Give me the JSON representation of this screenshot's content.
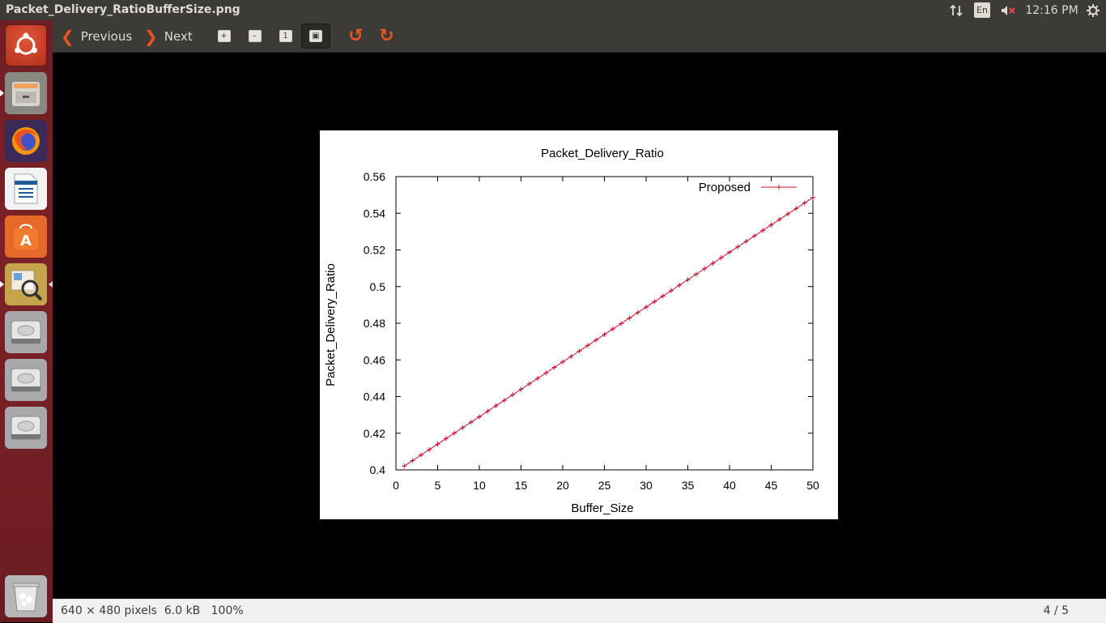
{
  "window": {
    "title": "Packet_Delivery_RatioBufferSize.png"
  },
  "tray": {
    "language": "En",
    "clock": "12:16 PM"
  },
  "toolbar": {
    "previous_label": "Previous",
    "next_label": "Next"
  },
  "status": {
    "dimensions": "640 × 480 pixels  6.0 kB   100%",
    "page": "4 / 5"
  },
  "colors": {
    "accent": "#e95420",
    "series": "#c8102e"
  },
  "chart_data": {
    "type": "line",
    "title": "Packet_Delivery_Ratio",
    "xlabel": "Buffer_Size",
    "ylabel": "Packet_Delivery_Ratio",
    "xlim": [
      0,
      50
    ],
    "ylim": [
      0.4,
      0.56
    ],
    "xticks": [
      0,
      5,
      10,
      15,
      20,
      25,
      30,
      35,
      40,
      45,
      50
    ],
    "yticks": [
      "0.4",
      "0.42",
      "0.44",
      "0.46",
      "0.48",
      "0.5",
      "0.52",
      "0.54",
      "0.56"
    ],
    "legend_position": "top-right",
    "grid": false,
    "series": [
      {
        "name": "Proposed",
        "marker": "plus",
        "x_start": 1,
        "x_end": 50,
        "x_step": 1,
        "y_start": 0.4021,
        "y_end": 0.5486
      }
    ]
  }
}
